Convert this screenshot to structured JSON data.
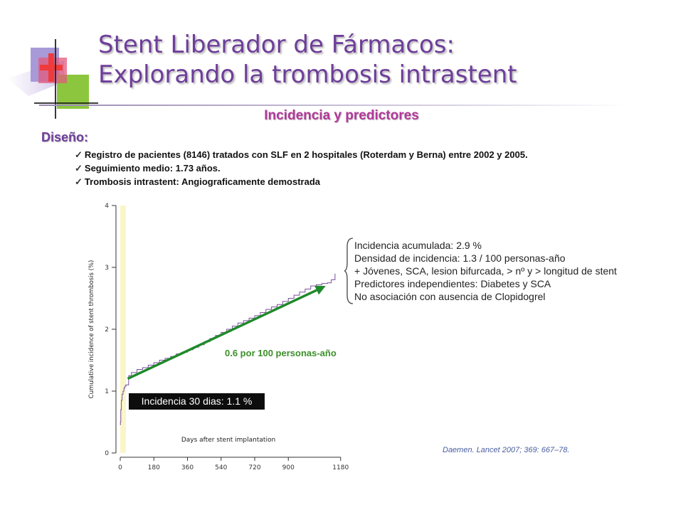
{
  "slide": {
    "title_line1": "Stent Liberador de Fármacos:",
    "title_line2": "Explorando la trombosis intrastent",
    "subtitle": "Incidencia y predictores",
    "design_label": "Diseño:",
    "bullets": [
      "Registro de pacientes (8146) tratados con SLF en 2 hospitales (Roterdam y Berna) entre 2002 y 2005.",
      "Seguimiento medio: 1.73 años.",
      "Trombosis intrastent: Angiograficamente demostrada"
    ],
    "notes": [
      "Incidencia acumulada: 2.9 %",
      "Densidad de incidencia: 1.3 / 100 personas-año",
      "+ Jóvenes, SCA, lesion bifurcada, > nº y > longitud de stent",
      "Predictores independientes: Diabetes y SCA",
      "No asociación con ausencia de Clopidogrel"
    ],
    "trend_label": "0.6 por 100 personas-año",
    "incidence_30d": "Incidencia 30 dias: 1.1 %",
    "citation": "Daemen. Lancet 2007; 369: 667–78.",
    "colors": {
      "title": "#6e3e9a",
      "subtitle": "#b2389a",
      "curve": "#7b4f9e",
      "trend_arrow": "#1f8a2a",
      "highlight_band": "#fbf6c8"
    }
  },
  "chart_data": {
    "type": "line",
    "xlabel": "Days after stent implantation",
    "ylabel": "Cumulative incidence of stent thrombosis (%)",
    "xlim": [
      0,
      1200
    ],
    "ylim": [
      0,
      4
    ],
    "xticks": [
      0,
      180,
      360,
      540,
      720,
      900,
      1180
    ],
    "yticks": [
      0,
      1,
      2,
      3,
      4
    ],
    "highlight_x": [
      0,
      30
    ],
    "series": [
      {
        "x": [
          1,
          3,
          6,
          10,
          15,
          20,
          25,
          30,
          45,
          60,
          90,
          120,
          150,
          180,
          210,
          240,
          270,
          300,
          330,
          360,
          390,
          420,
          450,
          480,
          510,
          540,
          570,
          600,
          630,
          660,
          690,
          720,
          750,
          780,
          810,
          840,
          870,
          900,
          930,
          960,
          990,
          1020,
          1050,
          1080,
          1110,
          1130,
          1150
        ],
        "y": [
          0.5,
          0.7,
          0.85,
          0.95,
          1.0,
          1.05,
          1.08,
          1.1,
          1.25,
          1.3,
          1.35,
          1.38,
          1.42,
          1.46,
          1.5,
          1.53,
          1.56,
          1.6,
          1.63,
          1.67,
          1.71,
          1.75,
          1.8,
          1.85,
          1.9,
          1.95,
          2.0,
          2.05,
          2.1,
          2.14,
          2.18,
          2.22,
          2.27,
          2.32,
          2.36,
          2.4,
          2.45,
          2.5,
          2.55,
          2.6,
          2.65,
          2.7,
          2.72,
          2.74,
          2.75,
          2.8,
          2.9
        ]
      }
    ],
    "trend_line": {
      "x": [
        40,
        1100
      ],
      "y": [
        1.2,
        2.7
      ]
    }
  }
}
